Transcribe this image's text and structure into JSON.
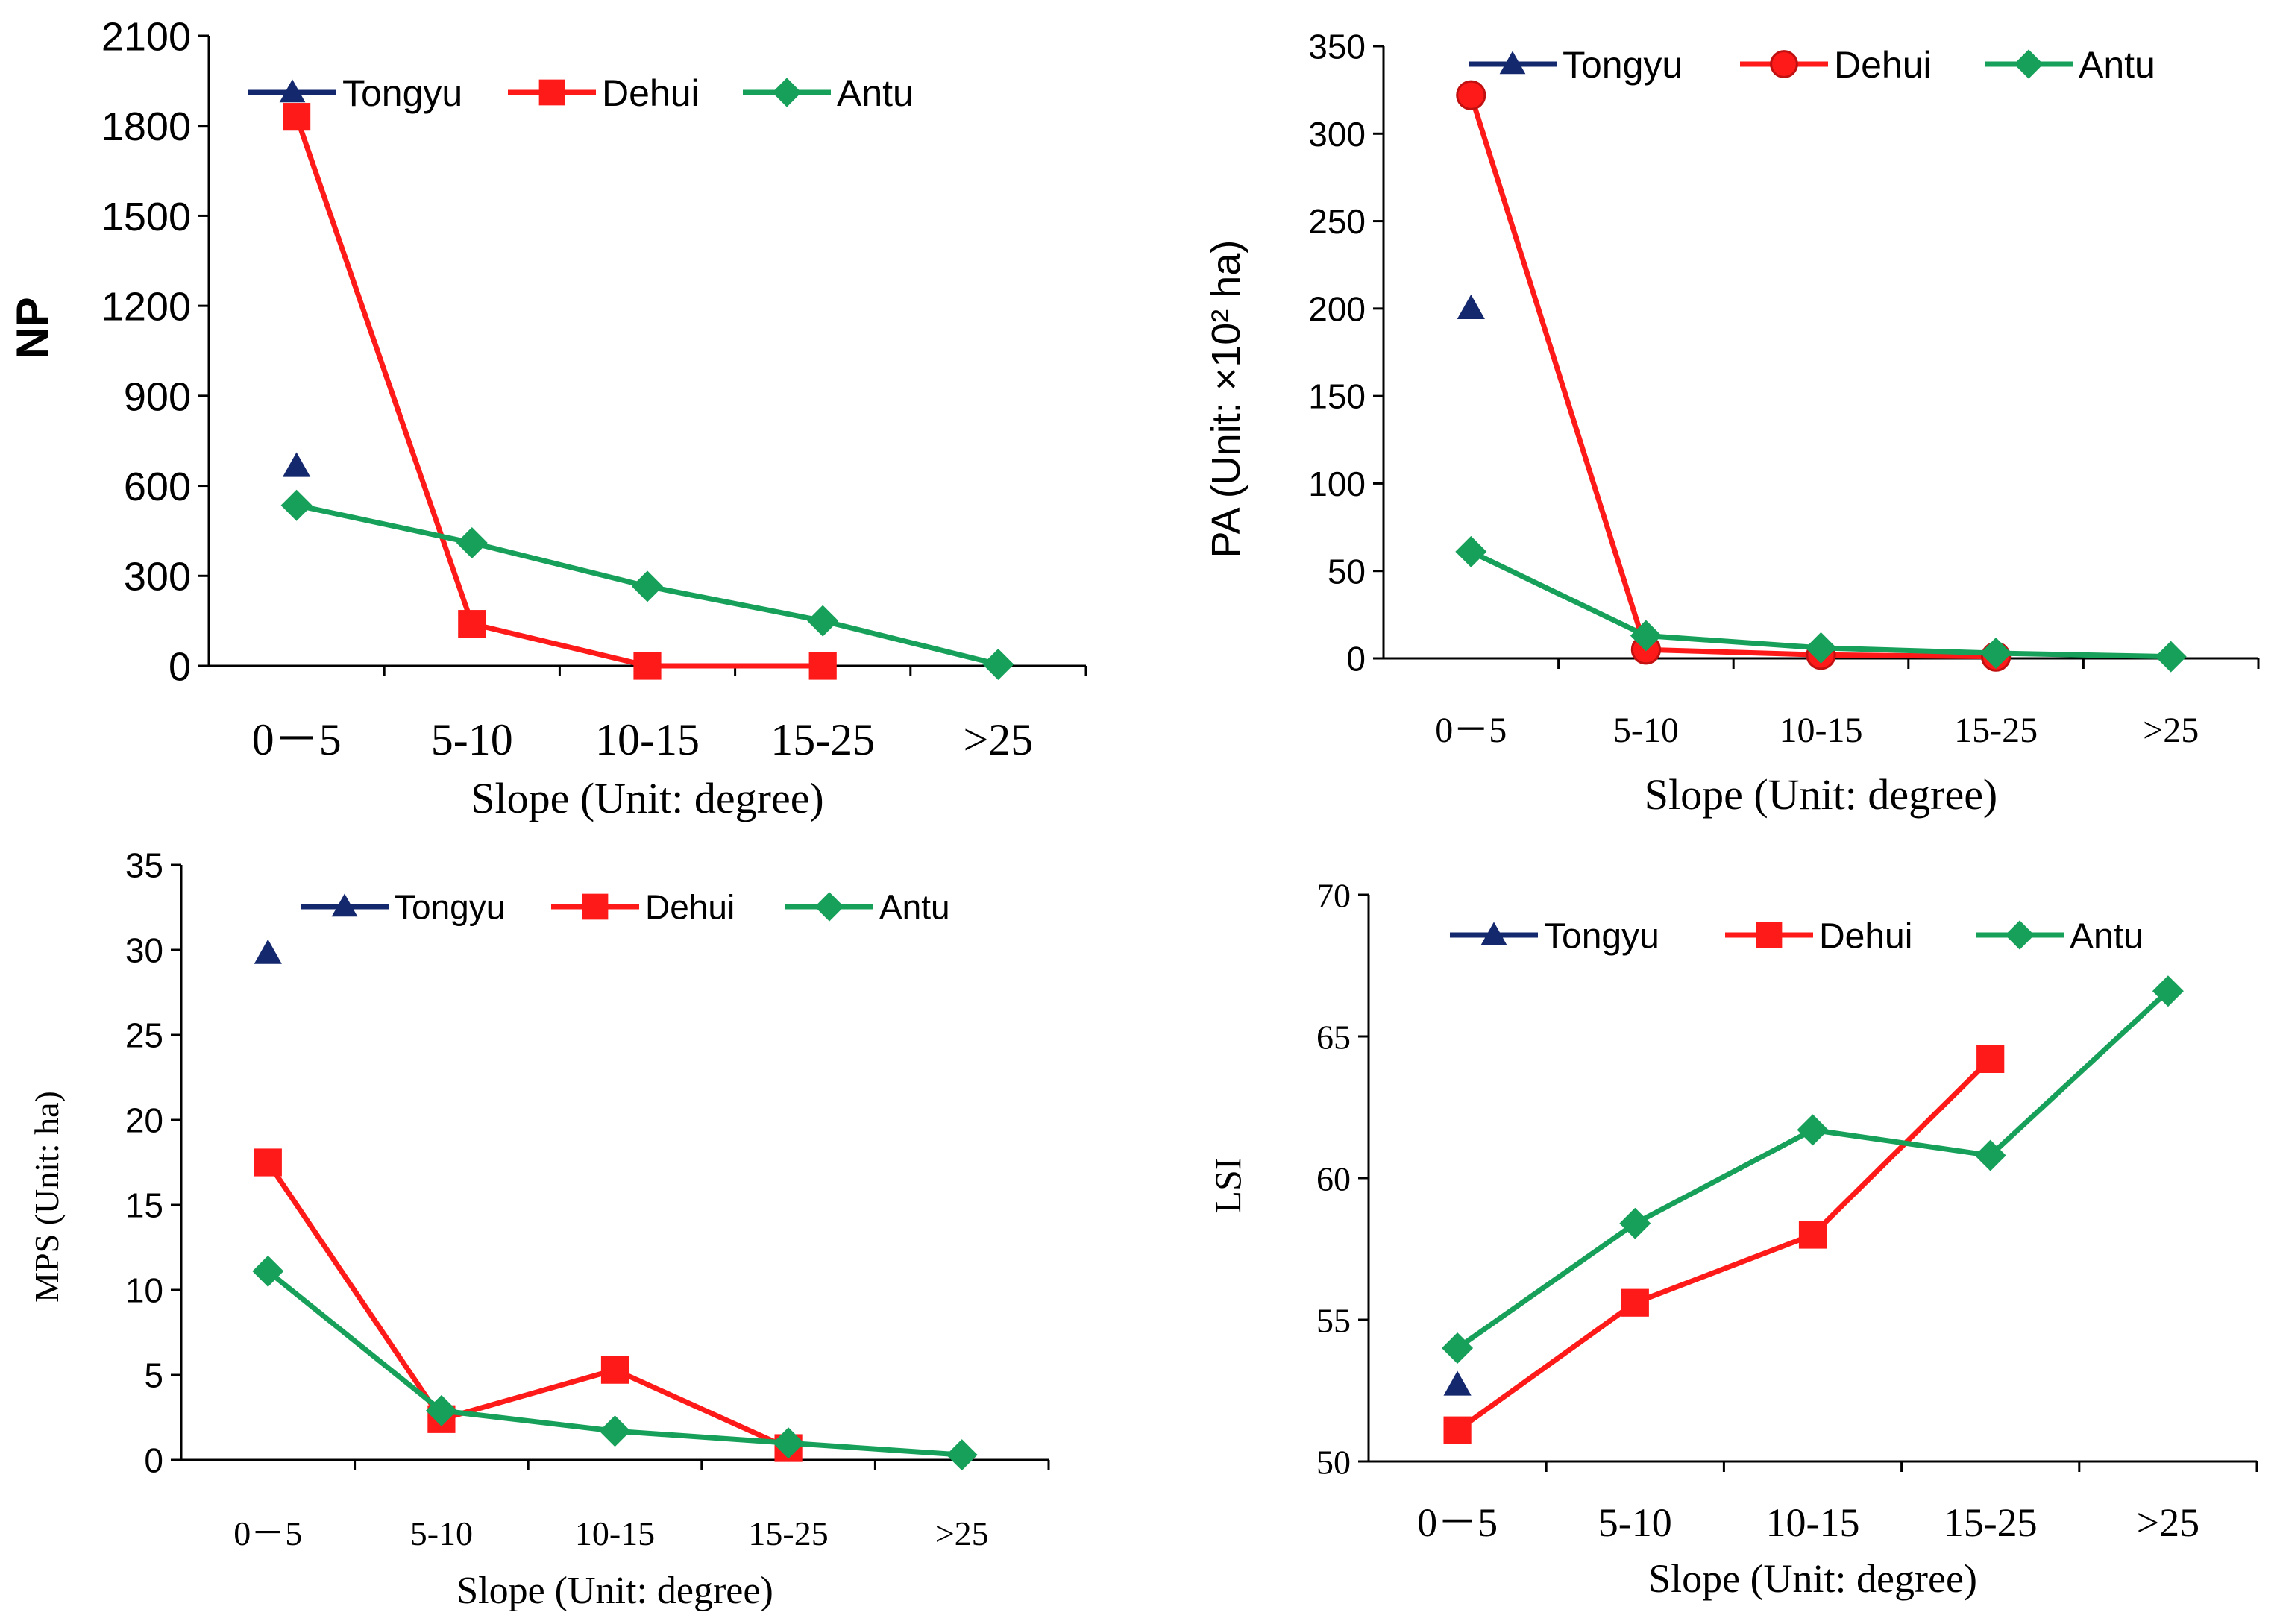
{
  "colors": {
    "Tongyu": "#14286e",
    "Dehui": "#ff1a1a",
    "Antu": "#17a05a",
    "axis": "#000000"
  },
  "chart_data": [
    {
      "id": "np",
      "type": "line",
      "title": "",
      "xlabel": "Slope (Unit: degree)",
      "ylabel": "NP",
      "categories": [
        "0－5",
        "5-10",
        "10-15",
        "15-25",
        ">25"
      ],
      "ylim": [
        0,
        2100
      ],
      "yticks": [
        "0",
        "300",
        "600",
        "900",
        "1200",
        "1500",
        "1800",
        "2100"
      ],
      "series": [
        {
          "name": "Tongyu",
          "marker": "triangle",
          "values": [
            665,
            null,
            null,
            null,
            null
          ]
        },
        {
          "name": "Dehui",
          "marker": "square",
          "values": [
            1830,
            140,
            0,
            0,
            null
          ]
        },
        {
          "name": "Antu",
          "marker": "diamond",
          "values": [
            535,
            410,
            265,
            150,
            5
          ]
        }
      ],
      "legend": "top"
    },
    {
      "id": "pa",
      "type": "line",
      "title": "",
      "xlabel": "Slope (Unit: degree)",
      "ylabel": "PA (Unit: ×10² ha)",
      "categories": [
        "0－5",
        "5-10",
        "10-15",
        "15-25",
        ">25"
      ],
      "ylim": [
        0,
        350
      ],
      "yticks": [
        "0",
        "50",
        "100",
        "150",
        "200",
        "250",
        "300",
        "350"
      ],
      "series": [
        {
          "name": "Tongyu",
          "marker": "triangle",
          "values": [
            200,
            null,
            null,
            null,
            null
          ]
        },
        {
          "name": "Dehui",
          "marker": "circle",
          "values": [
            322,
            5,
            2,
            1,
            null
          ]
        },
        {
          "name": "Antu",
          "marker": "diamond",
          "values": [
            61,
            13,
            6,
            3,
            1
          ]
        }
      ],
      "legend": "top"
    },
    {
      "id": "mps",
      "type": "line",
      "title": "",
      "xlabel": "Slope (Unit: degree)",
      "ylabel": "MPS (Unit: ha)",
      "categories": [
        "0－5",
        "5-10",
        "10-15",
        "15-25",
        ">25"
      ],
      "ylim": [
        0,
        35
      ],
      "yticks": [
        "0",
        "5",
        "10",
        "15",
        "20",
        "25",
        "30",
        "35"
      ],
      "series": [
        {
          "name": "Tongyu",
          "marker": "triangle",
          "values": [
            29.8,
            null,
            null,
            null,
            null
          ]
        },
        {
          "name": "Dehui",
          "marker": "square",
          "values": [
            17.5,
            2.4,
            5.3,
            0.7,
            null
          ]
        },
        {
          "name": "Antu",
          "marker": "diamond",
          "values": [
            11.1,
            2.9,
            1.7,
            1.0,
            0.3
          ]
        }
      ],
      "legend": "top"
    },
    {
      "id": "lsi",
      "type": "line",
      "title": "",
      "xlabel": "Slope (Unit: degree)",
      "ylabel": "LSI",
      "categories": [
        "0－5",
        "5-10",
        "10-15",
        "15-25",
        ">25"
      ],
      "ylim": [
        50,
        70
      ],
      "yticks": [
        "50",
        "55",
        "60",
        "65",
        "70"
      ],
      "series": [
        {
          "name": "Tongyu",
          "marker": "triangle",
          "values": [
            52.7,
            null,
            null,
            null,
            null
          ]
        },
        {
          "name": "Dehui",
          "marker": "square",
          "values": [
            51.1,
            55.6,
            58.0,
            64.2,
            null
          ]
        },
        {
          "name": "Antu",
          "marker": "diamond",
          "values": [
            54.0,
            58.4,
            61.7,
            60.8,
            66.6
          ]
        }
      ],
      "legend": "top"
    }
  ]
}
